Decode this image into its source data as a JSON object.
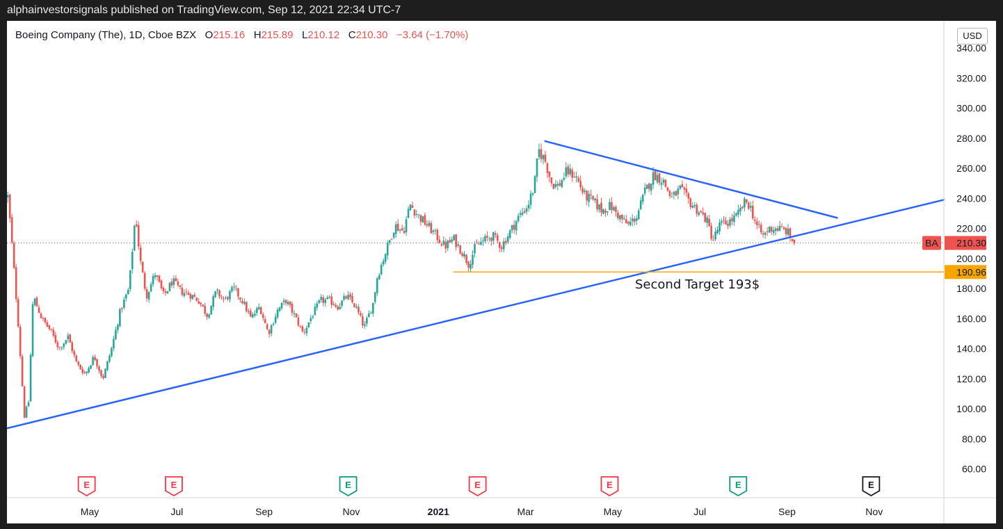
{
  "banner": {
    "text": "alphainvestorsignals published on TradingView.com, Sep 12, 2021 22:34 UTC-7"
  },
  "legend": {
    "symbol": "Boeing Company (The), 1D, Cboe BZX",
    "open_label": "O",
    "open": "215.16",
    "high_label": "H",
    "high": "215.89",
    "low_label": "L",
    "low": "210.12",
    "close_label": "C",
    "close": "210.30",
    "change": "−3.64 (−1.70%)"
  },
  "currency": "USD",
  "colors": {
    "up": "#26a69a",
    "down": "#ef5350",
    "trendline": "#2962ff",
    "target_line": "#f7a600",
    "price_line": "#ef5350"
  },
  "badges": {
    "price_symbol": "BA",
    "price": "210.30",
    "target": "190.96"
  },
  "annotation": {
    "text": "Second Target 193$"
  },
  "earnings_marker_label": "E",
  "chart_data": {
    "type": "candlestick",
    "title": "Boeing Company (The), 1D, Cboe BZX",
    "ylim": [
      40,
      350
    ],
    "y_ticks": [
      "340.00",
      "320.00",
      "300.00",
      "280.00",
      "260.00",
      "240.00",
      "220.00",
      "200.00",
      "180.00",
      "160.00",
      "140.00",
      "120.00",
      "100.00",
      "80.00",
      "60.00"
    ],
    "y_tick_values": [
      340,
      320,
      300,
      280,
      260,
      240,
      220,
      200,
      180,
      160,
      140,
      120,
      100,
      80,
      60
    ],
    "x_tick_labels": [
      {
        "label": "May",
        "month": 4.0
      },
      {
        "label": "Jul",
        "month": 6.0
      },
      {
        "label": "Sep",
        "month": 8.0
      },
      {
        "label": "Nov",
        "month": 10.0
      },
      {
        "label": "2021",
        "month": 12.0,
        "bold": true
      },
      {
        "label": "Mar",
        "month": 14.0
      },
      {
        "label": "May",
        "month": 16.0
      },
      {
        "label": "Jul",
        "month": 18.0
      },
      {
        "label": "Sep",
        "month": 20.0
      },
      {
        "label": "Nov",
        "month": 22.0
      }
    ],
    "x_range_months": [
      2.1,
      23.6
    ],
    "price_anchors": [
      [
        2.12,
        241
      ],
      [
        2.2,
        215
      ],
      [
        2.35,
        160
      ],
      [
        2.5,
        95
      ],
      [
        2.6,
        105
      ],
      [
        2.7,
        175
      ],
      [
        2.9,
        160
      ],
      [
        3.1,
        152
      ],
      [
        3.3,
        140
      ],
      [
        3.5,
        148
      ],
      [
        3.7,
        130
      ],
      [
        3.9,
        123
      ],
      [
        4.1,
        135
      ],
      [
        4.3,
        120
      ],
      [
        4.5,
        140
      ],
      [
        4.7,
        165
      ],
      [
        4.9,
        180
      ],
      [
        5.05,
        230
      ],
      [
        5.15,
        200
      ],
      [
        5.3,
        175
      ],
      [
        5.5,
        190
      ],
      [
        5.7,
        175
      ],
      [
        5.9,
        185
      ],
      [
        6.1,
        178
      ],
      [
        6.3,
        176
      ],
      [
        6.5,
        172
      ],
      [
        6.7,
        162
      ],
      [
        6.9,
        178
      ],
      [
        7.1,
        172
      ],
      [
        7.3,
        180
      ],
      [
        7.5,
        172
      ],
      [
        7.7,
        160
      ],
      [
        7.9,
        168
      ],
      [
        8.1,
        150
      ],
      [
        8.3,
        165
      ],
      [
        8.5,
        172
      ],
      [
        8.7,
        162
      ],
      [
        8.9,
        150
      ],
      [
        9.1,
        162
      ],
      [
        9.3,
        172
      ],
      [
        9.5,
        172
      ],
      [
        9.7,
        168
      ],
      [
        9.9,
        175
      ],
      [
        10.1,
        168
      ],
      [
        10.3,
        154
      ],
      [
        10.5,
        170
      ],
      [
        10.6,
        188
      ],
      [
        10.8,
        205
      ],
      [
        11.0,
        222
      ],
      [
        11.2,
        218
      ],
      [
        11.35,
        236
      ],
      [
        11.55,
        228
      ],
      [
        11.75,
        222
      ],
      [
        11.95,
        215
      ],
      [
        12.15,
        208
      ],
      [
        12.35,
        213
      ],
      [
        12.55,
        204
      ],
      [
        12.7,
        196
      ],
      [
        12.85,
        208
      ],
      [
        13.05,
        212
      ],
      [
        13.25,
        215
      ],
      [
        13.45,
        208
      ],
      [
        13.65,
        218
      ],
      [
        13.85,
        228
      ],
      [
        14.05,
        235
      ],
      [
        14.2,
        248
      ],
      [
        14.3,
        272
      ],
      [
        14.45,
        265
      ],
      [
        14.6,
        250
      ],
      [
        14.75,
        248
      ],
      [
        14.95,
        258
      ],
      [
        15.15,
        255
      ],
      [
        15.35,
        242
      ],
      [
        15.55,
        238
      ],
      [
        15.75,
        232
      ],
      [
        15.95,
        235
      ],
      [
        16.15,
        228
      ],
      [
        16.35,
        222
      ],
      [
        16.55,
        228
      ],
      [
        16.75,
        245
      ],
      [
        16.95,
        256
      ],
      [
        17.15,
        252
      ],
      [
        17.35,
        240
      ],
      [
        17.55,
        246
      ],
      [
        17.75,
        238
      ],
      [
        17.95,
        232
      ],
      [
        18.15,
        226
      ],
      [
        18.3,
        212
      ],
      [
        18.45,
        222
      ],
      [
        18.65,
        224
      ],
      [
        18.85,
        228
      ],
      [
        19.05,
        238
      ],
      [
        19.15,
        235
      ],
      [
        19.3,
        222
      ],
      [
        19.45,
        215
      ],
      [
        19.6,
        220
      ],
      [
        19.8,
        220
      ],
      [
        20.0,
        218
      ],
      [
        20.12,
        212
      ],
      [
        20.2,
        210
      ]
    ],
    "earnings_markers": [
      {
        "month": 3.93,
        "kind": "negative"
      },
      {
        "month": 5.93,
        "kind": "negative"
      },
      {
        "month": 9.93,
        "kind": "positive"
      },
      {
        "month": 12.9,
        "kind": "negative"
      },
      {
        "month": 15.93,
        "kind": "negative"
      },
      {
        "month": 18.88,
        "kind": "positive"
      },
      {
        "month": 21.93,
        "kind": "upcoming"
      }
    ],
    "lines": [
      {
        "name": "support",
        "from": [
          2.1,
          87
        ],
        "to": [
          23.6,
          239
        ]
      },
      {
        "name": "resistance",
        "from": [
          14.45,
          278
        ],
        "to": [
          21.15,
          227
        ]
      },
      {
        "name": "target",
        "from": [
          12.35,
          190.96
        ],
        "to": [
          23.6,
          190.96
        ]
      }
    ],
    "last_price": 210.3,
    "target_price": 190.96
  }
}
